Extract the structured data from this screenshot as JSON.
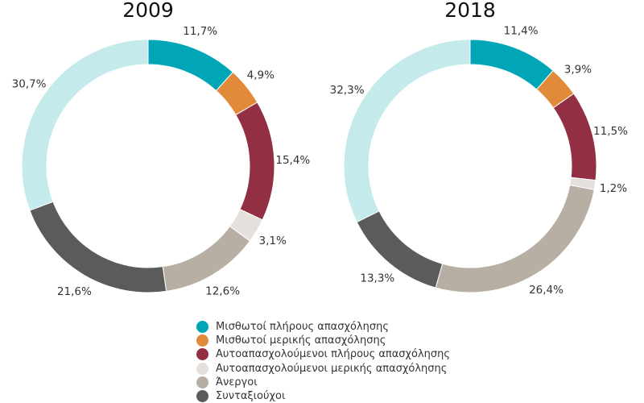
{
  "colors": {
    "teal": "#00a6b5",
    "orange": "#e08a3a",
    "maroon": "#932f43",
    "light": "#e6e0dc",
    "taupe": "#b7afa3",
    "dark": "#5b5b5b",
    "lightblue": "#c5eaec"
  },
  "legend": [
    {
      "label": "Μισθωτοί πλήρους απασχόλησης",
      "color": "#00a6b5"
    },
    {
      "label": "Μισθωτοί μερικής απασχόλησης",
      "color": "#e08a3a"
    },
    {
      "label": "Αυτοαπασχολούμενοι πλήρους απασχόλησης",
      "color": "#932f43"
    },
    {
      "label": "Αυτοαπασχολούμενοι μερικής απασχόλησης",
      "color": "#e6e0dc"
    },
    {
      "label": "Άνεργοι",
      "color": "#b7afa3"
    },
    {
      "label": "Συνταξιούχοι",
      "color": "#5b5b5b"
    }
  ],
  "chart_data": [
    {
      "type": "pie",
      "title": "2009",
      "categories": [
        "Μισθωτοί πλήρους απασχόλησης",
        "Μισθωτοί μερικής απασχόλησης",
        "Αυτοαπασχολούμενοι πλήρους απασχόλησης",
        "Αυτοαπασχολούμενοι μερικής απασχόλησης",
        "Άνεργοι",
        "Συνταξιούχοι",
        ""
      ],
      "values": [
        11.7,
        4.9,
        15.4,
        3.1,
        12.6,
        21.6,
        30.7
      ],
      "labels": [
        "11,7%",
        "4,9%",
        "15,4%",
        "3,1%",
        "12,6%",
        "21,6%",
        "30,7%"
      ],
      "colors": [
        "#00a6b5",
        "#e08a3a",
        "#932f43",
        "#e6e0dc",
        "#b7afa3",
        "#5b5b5b",
        "#c5eaec"
      ]
    },
    {
      "type": "pie",
      "title": "2018",
      "categories": [
        "Μισθωτοί πλήρους απασχόλησης",
        "Μισθωτοί μερικής απασχόλησης",
        "Αυτοαπασχολούμενοι πλήρους απασχόλησης",
        "Αυτοαπασχολούμενοι μερικής απασχόλησης",
        "Άνεργοι",
        "Συνταξιούχοι",
        ""
      ],
      "values": [
        11.4,
        3.9,
        11.5,
        1.2,
        26.4,
        13.3,
        32.3
      ],
      "labels": [
        "11,4%",
        "3,9%",
        "11,5%",
        "1,2%",
        "26,4%",
        "13,3%",
        "32,3%"
      ],
      "colors": [
        "#00a6b5",
        "#e08a3a",
        "#932f43",
        "#e6e0dc",
        "#b7afa3",
        "#5b5b5b",
        "#c5eaec"
      ]
    }
  ]
}
